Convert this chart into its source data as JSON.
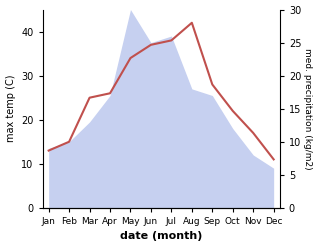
{
  "months": [
    "Jan",
    "Feb",
    "Mar",
    "Apr",
    "May",
    "Jun",
    "Jul",
    "Aug",
    "Sep",
    "Oct",
    "Nov",
    "Dec"
  ],
  "temp": [
    13,
    15,
    25,
    26,
    34,
    37,
    38,
    42,
    28,
    22,
    17,
    11
  ],
  "precip": [
    9,
    10,
    13,
    17,
    30,
    25,
    26,
    18,
    17,
    12,
    8,
    6
  ],
  "temp_color": "#c0504d",
  "precip_color_fill": "#c6d0f0",
  "temp_ylim": [
    0,
    45
  ],
  "precip_ylim": [
    0,
    30
  ],
  "xlabel": "date (month)",
  "ylabel_left": "max temp (C)",
  "ylabel_right": "med. precipitation (kg/m2)",
  "bg_color": "#ffffff",
  "left_yticks": [
    0,
    10,
    20,
    30,
    40
  ],
  "right_yticks": [
    0,
    5,
    10,
    15,
    20,
    25,
    30
  ]
}
